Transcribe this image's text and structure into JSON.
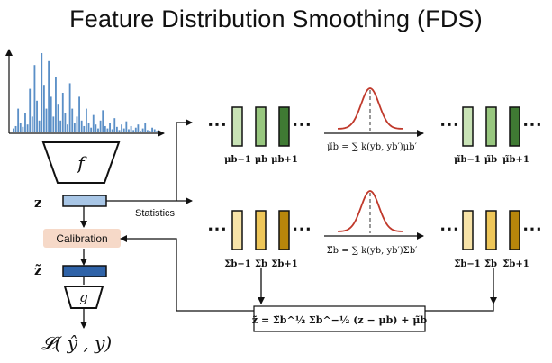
{
  "title": "Feature Distribution Smoothing (FDS)",
  "encoder_label": "f",
  "regressor_label": "g",
  "feature_label": "z",
  "calibrated_feature_label": "z̃",
  "calibration_label": "Calibration",
  "statistics_label": "Statistics",
  "loss_label": "𝓛( ŷ , y)",
  "mean_row": {
    "dots": "⋯",
    "labels": [
      "μb−1",
      "μb",
      "μb+1"
    ],
    "smoothed_labels": [
      "μ̃b−1",
      "μ̃b",
      "μ̃b+1"
    ],
    "formula": "μ̃b = ∑ k(yb, yb′)μb′",
    "colors": [
      "#c9e3b6",
      "#98c77f",
      "#3f7a33"
    ]
  },
  "cov_row": {
    "dots": "⋯",
    "labels": [
      "Σb−1",
      "Σb",
      "Σb+1"
    ],
    "smoothed_labels": [
      "Σ̃b−1",
      "Σ̃b",
      "Σ̃b+1"
    ],
    "formula": "Σ̃b = ∑ k(yb, yb′)Σb′",
    "colors": [
      "#f7e3a8",
      "#eec659",
      "#b8860b"
    ]
  },
  "calibration_formula": "z̃ = Σ̃b^½ Σb^−½ (z − μb) + μ̃b",
  "kernel_color": "#c0392b",
  "histogram": {
    "color": "#5a8fc7",
    "values": [
      0.05,
      0.08,
      0.3,
      0.12,
      0.07,
      0.25,
      0.1,
      0.55,
      0.2,
      0.85,
      0.4,
      0.15,
      1.0,
      0.6,
      0.3,
      0.9,
      0.45,
      0.2,
      0.7,
      0.35,
      0.15,
      0.5,
      0.25,
      0.1,
      0.62,
      0.3,
      0.12,
      0.2,
      0.45,
      0.15,
      0.08,
      0.3,
      0.12,
      0.06,
      0.22,
      0.1,
      0.05,
      0.15,
      0.28,
      0.08,
      0.05,
      0.12,
      0.04,
      0.18,
      0.07,
      0.03,
      0.1,
      0.05,
      0.14,
      0.04,
      0.08,
      0.03,
      0.06,
      0.1,
      0.02,
      0.05,
      0.12,
      0.03,
      0.02,
      0.06,
      0.04,
      0.02
    ]
  }
}
